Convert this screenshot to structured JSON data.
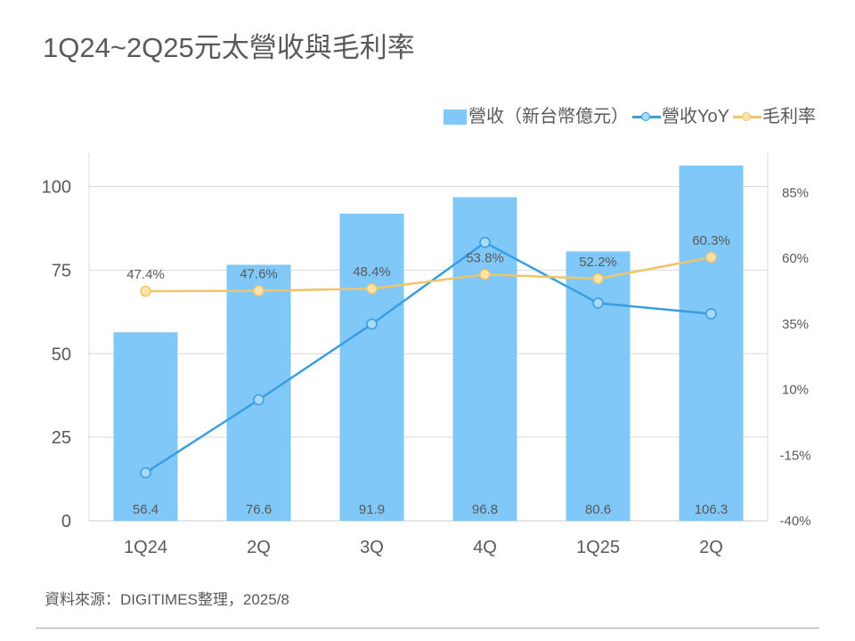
{
  "title": "1Q24~2Q25元太營收與毛利率",
  "source": "資料來源：DIGITIMES整理，2025/8",
  "colors": {
    "bar": "#7FC8F8",
    "yoy_line": "#3A9DE0",
    "yoy_marker": "#A8DAF8",
    "margin_line": "#F2C46A",
    "margin_marker": "#FCE3AD",
    "text": "#595959",
    "grid": "#D9D9D9",
    "axis": "#C8C8C8"
  },
  "chart_data": {
    "type": "bar",
    "categories": [
      "1Q24",
      "2Q",
      "3Q",
      "4Q",
      "1Q25",
      "2Q"
    ],
    "series": [
      {
        "name": "營收（新台幣億元）",
        "type": "bar",
        "axis": "left",
        "values": [
          56.4,
          76.6,
          91.9,
          96.8,
          80.6,
          106.3
        ]
      },
      {
        "name": "營收YoY",
        "type": "line",
        "axis": "right",
        "values": [
          -21.7,
          6.1,
          34.9,
          66.0,
          42.9,
          38.8
        ]
      },
      {
        "name": "毛利率",
        "type": "line",
        "axis": "right",
        "values": [
          47.4,
          47.6,
          48.4,
          53.8,
          52.2,
          60.3
        ],
        "labels": [
          "47.4%",
          "47.6%",
          "48.4%",
          "53.8%",
          "52.2%",
          "60.3%"
        ]
      }
    ],
    "y_left": {
      "ylim": [
        0,
        110
      ],
      "ticks": [
        0,
        25,
        50,
        75,
        100
      ]
    },
    "y_right": {
      "ylim": [
        -40,
        100
      ],
      "ticks": [
        "-40%",
        "-15%",
        "10%",
        "35%",
        "60%",
        "85%"
      ]
    },
    "legend": "top-right",
    "grid": true
  }
}
